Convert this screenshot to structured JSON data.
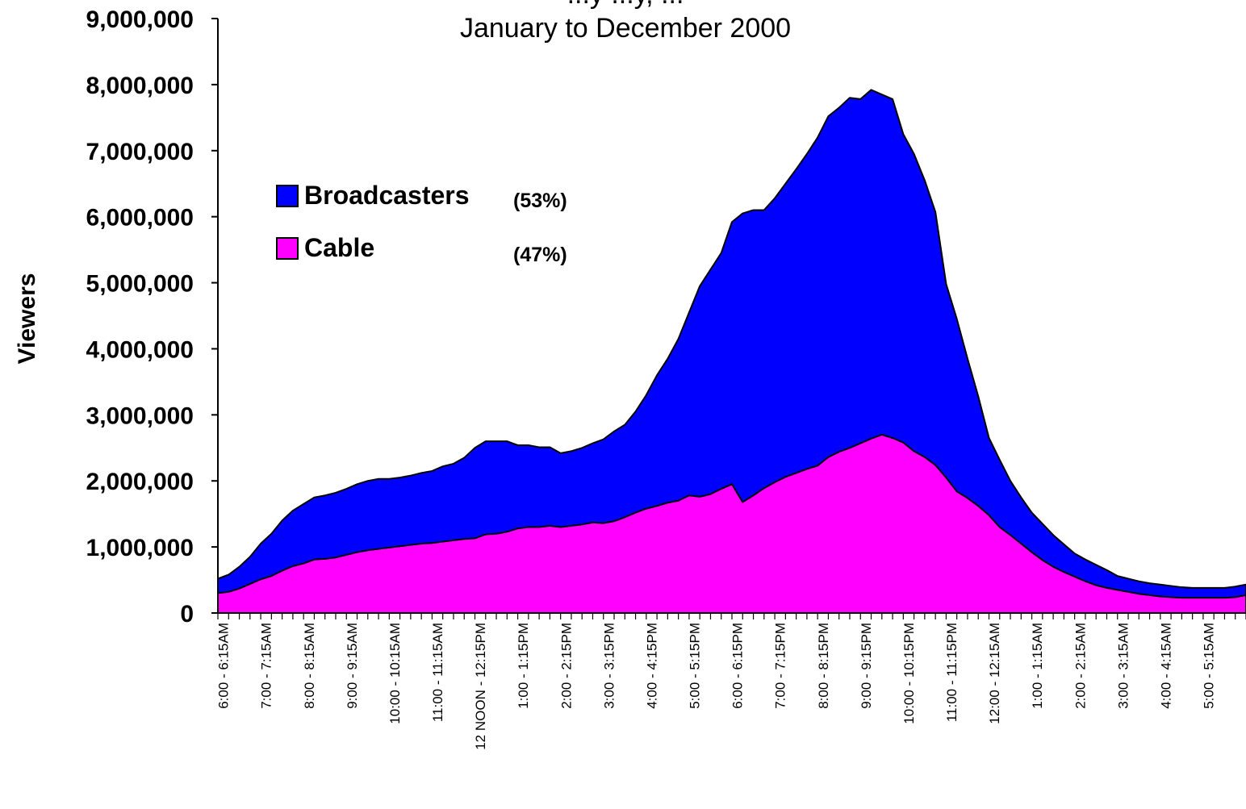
{
  "chart_data": {
    "type": "area",
    "stacked": true,
    "title_partial": "...y ...y, ...",
    "subtitle": "January to December 2000",
    "ylabel": "Viewers",
    "ylim": [
      0,
      9000000
    ],
    "yticks": [
      0,
      1000000,
      2000000,
      3000000,
      4000000,
      5000000,
      6000000,
      7000000,
      8000000,
      9000000
    ],
    "ytick_labels": [
      "0",
      "1,000,000",
      "2,000,000",
      "3,000,000",
      "4,000,000",
      "5,000,000",
      "6,000,000",
      "7,000,000",
      "8,000,000",
      "9,000,000"
    ],
    "grid": false,
    "legend_position": "upper-left",
    "x_labels": [
      "6:00 - 6:15AM",
      "7:00 - 7:15AM",
      "8:00 - 8:15AM",
      "9:00 - 9:15AM",
      "10:00 - 10:15AM",
      "11:00 - 11:15AM",
      "12 NOON - 12:15PM",
      "1:00 - 1:15PM",
      "2:00 - 2:15PM",
      "3:00 - 3:15PM",
      "4:00 - 4:15PM",
      "5:00 - 5:15PM",
      "6:00 - 6:15PM",
      "7:00 - 7:15PM",
      "8:00 - 8:15PM",
      "9:00 - 9:15PM",
      "10:00 - 10:15PM",
      "11:00 - 11:15PM",
      "12:00 - 12:15AM",
      "1:00 - 1:15AM",
      "2:00 - 2:15AM",
      "3:00 - 3:15AM",
      "4:00 - 4:15AM",
      "5:00 - 5:15AM"
    ],
    "points_per_hour": 4,
    "series": [
      {
        "name": "Broadcasters",
        "share": "(53%)",
        "color": "#0000ff",
        "total_values": [
          520000,
          580000,
          700000,
          850000,
          1050000,
          1200000,
          1400000,
          1550000,
          1650000,
          1750000,
          1780000,
          1820000,
          1880000,
          1950000,
          2000000,
          2030000,
          2030000,
          2050000,
          2080000,
          2120000,
          2150000,
          2220000,
          2260000,
          2350000,
          2500000,
          2600000,
          2600000,
          2600000,
          2540000,
          2540000,
          2510000,
          2510000,
          2420000,
          2450000,
          2500000,
          2570000,
          2630000,
          2750000,
          2850000,
          3050000,
          3300000,
          3600000,
          3850000,
          4150000,
          4550000,
          4950000,
          5200000,
          5450000,
          5920000,
          6050000,
          6100000,
          6100000,
          6280000,
          6500000,
          6720000,
          6950000,
          7200000,
          7520000,
          7650000,
          7800000,
          7780000,
          7920000,
          7850000,
          7780000,
          7250000,
          6950000,
          6550000,
          6070000,
          4980000,
          4450000,
          3850000,
          3280000,
          2650000,
          2320000,
          2000000,
          1750000,
          1520000,
          1350000,
          1180000,
          1040000,
          900000,
          810000,
          730000,
          650000,
          560000,
          520000,
          480000,
          450000,
          430000,
          410000,
          390000,
          380000,
          380000,
          380000,
          380000,
          400000,
          430000
        ]
      },
      {
        "name": "Cable",
        "share": "(47%)",
        "color": "#ff00ff",
        "values": [
          300000,
          320000,
          370000,
          440000,
          510000,
          560000,
          640000,
          710000,
          750000,
          810000,
          820000,
          840000,
          880000,
          920000,
          950000,
          970000,
          990000,
          1010000,
          1030000,
          1050000,
          1060000,
          1080000,
          1100000,
          1120000,
          1130000,
          1190000,
          1200000,
          1230000,
          1280000,
          1300000,
          1300000,
          1320000,
          1300000,
          1320000,
          1340000,
          1370000,
          1360000,
          1390000,
          1450000,
          1520000,
          1580000,
          1620000,
          1670000,
          1700000,
          1780000,
          1760000,
          1800000,
          1880000,
          1950000,
          1680000,
          1780000,
          1890000,
          1980000,
          2060000,
          2120000,
          2180000,
          2230000,
          2360000,
          2440000,
          2500000,
          2570000,
          2640000,
          2700000,
          2650000,
          2580000,
          2450000,
          2360000,
          2240000,
          2050000,
          1840000,
          1740000,
          1620000,
          1480000,
          1300000,
          1180000,
          1050000,
          920000,
          800000,
          700000,
          620000,
          550000,
          480000,
          420000,
          380000,
          350000,
          320000,
          290000,
          270000,
          250000,
          240000,
          230000,
          230000,
          230000,
          230000,
          230000,
          240000,
          270000
        ]
      }
    ]
  }
}
